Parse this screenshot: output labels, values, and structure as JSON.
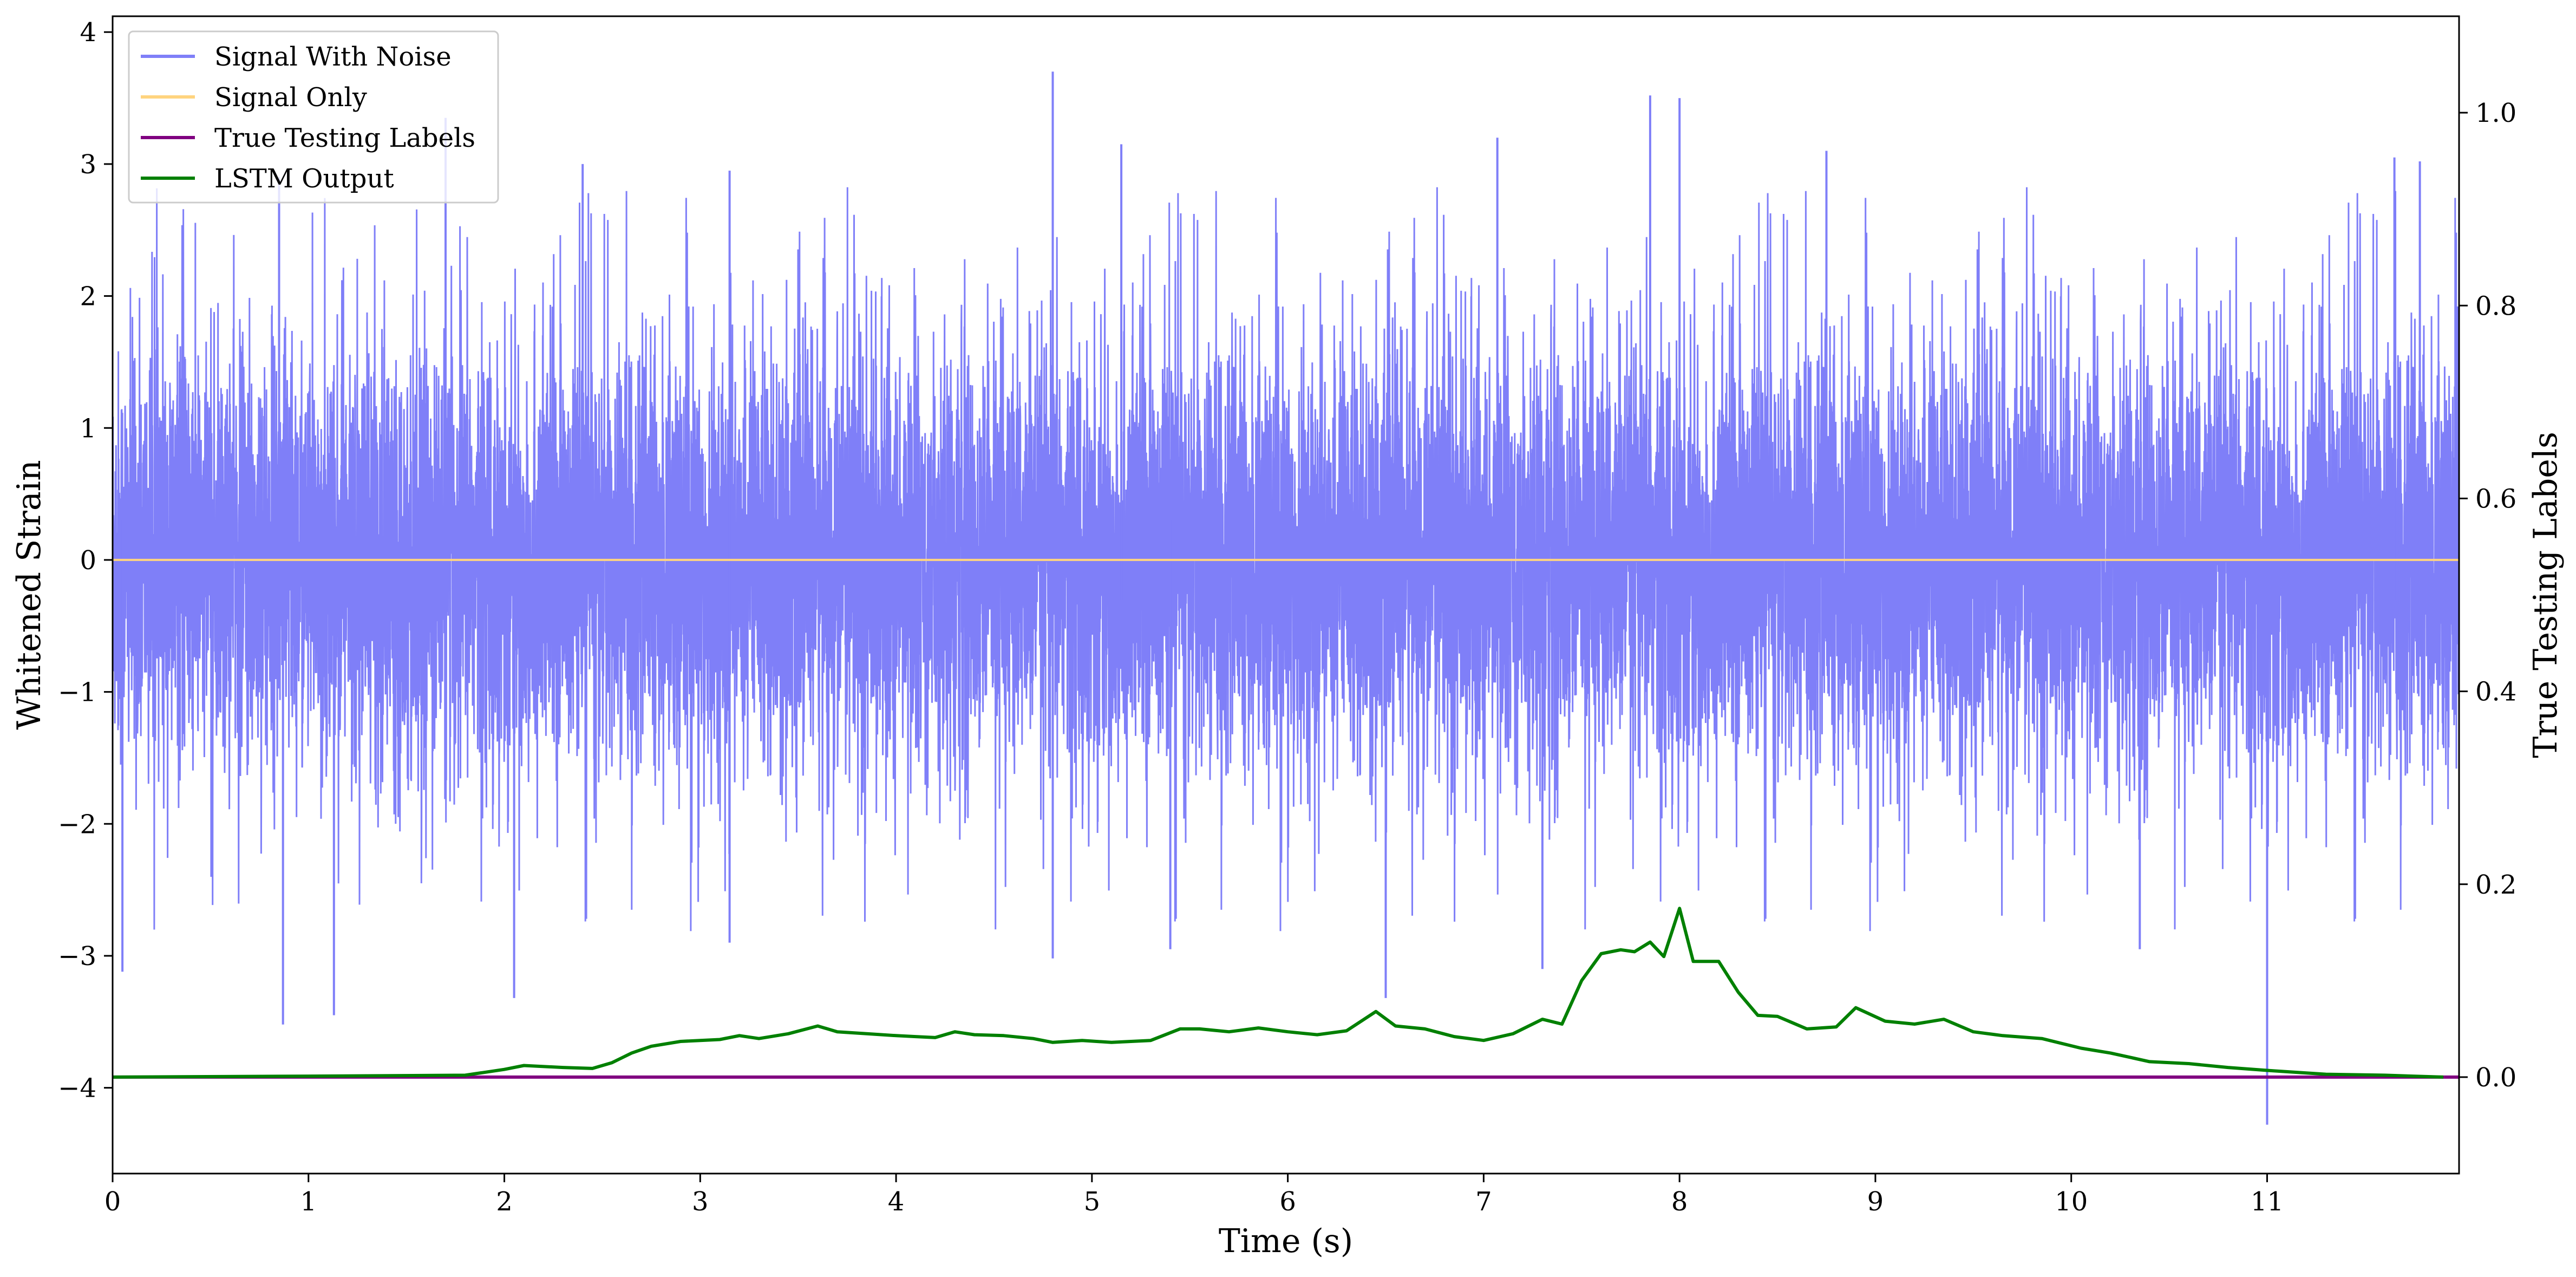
{
  "chart_data": {
    "type": "line",
    "title": "",
    "xlabel": "Time (s)",
    "ylabel": "Whitened Strain",
    "ylabel_right": "True Testing Labels",
    "xlim": [
      0,
      11.98
    ],
    "ylim": [
      -4.65,
      4.12
    ],
    "ylim_right": [
      -0.1,
      1.1
    ],
    "x_ticks": [
      0,
      1,
      2,
      3,
      4,
      5,
      6,
      7,
      8,
      9,
      10,
      11
    ],
    "x_tick_labels": [
      "0",
      "1",
      "2",
      "3",
      "4",
      "5",
      "6",
      "7",
      "8",
      "9",
      "10",
      "11"
    ],
    "y_ticks": [
      -4,
      -3,
      -2,
      -1,
      0,
      1,
      2,
      3,
      4
    ],
    "y_tick_labels": [
      "−4",
      "−3",
      "−2",
      "−1",
      "0",
      "1",
      "2",
      "3",
      "4"
    ],
    "y_right_ticks": [
      0.0,
      0.2,
      0.4,
      0.6,
      0.8,
      1.0
    ],
    "y_right_tick_labels": [
      "0.0",
      "0.2",
      "0.4",
      "0.6",
      "0.8",
      "1.0"
    ],
    "grid": false,
    "legend_position": "top-left",
    "series": [
      {
        "name": "Signal With Noise",
        "color": "#7f7ff8",
        "axis": "left",
        "kind": "noise",
        "x_range": [
          0,
          11.98
        ],
        "core_amplitude": [
          -1.0,
          1.0
        ],
        "peaks": [
          {
            "x": 4.8,
            "y": 3.7
          },
          {
            "x": 7.85,
            "y": 3.52
          },
          {
            "x": 8.0,
            "y": 3.5
          },
          {
            "x": 7.07,
            "y": 3.2
          },
          {
            "x": 11.65,
            "y": 3.05
          },
          {
            "x": 11.78,
            "y": 3.02
          },
          {
            "x": 1.7,
            "y": 3.35
          },
          {
            "x": 2.4,
            "y": 3.0
          },
          {
            "x": 5.15,
            "y": 3.15
          },
          {
            "x": 8.75,
            "y": 3.1
          },
          {
            "x": 3.15,
            "y": 2.95
          },
          {
            "x": 0.85,
            "y": 2.9
          },
          {
            "x": 11.0,
            "y": -4.28
          },
          {
            "x": 0.05,
            "y": -3.12
          },
          {
            "x": 0.87,
            "y": -3.52
          },
          {
            "x": 1.13,
            "y": -3.45
          },
          {
            "x": 2.05,
            "y": -3.32
          },
          {
            "x": 6.5,
            "y": -3.32
          },
          {
            "x": 4.8,
            "y": -3.02
          },
          {
            "x": 3.15,
            "y": -2.9
          },
          {
            "x": 5.4,
            "y": -2.95
          },
          {
            "x": 7.3,
            "y": -3.1
          },
          {
            "x": 10.35,
            "y": -2.95
          }
        ]
      },
      {
        "name": "Signal Only",
        "color": "#ffd47f",
        "axis": "left",
        "x": [
          0,
          11.98
        ],
        "y": [
          0,
          0
        ]
      },
      {
        "name": "True Testing Labels",
        "color": "#800080",
        "axis": "right",
        "x": [
          0,
          11.98
        ],
        "y": [
          0,
          0
        ]
      },
      {
        "name": "LSTM Output",
        "color": "#008000",
        "axis": "right",
        "x": [
          0,
          1.0,
          1.8,
          2.0,
          2.1,
          2.3,
          2.45,
          2.55,
          2.65,
          2.75,
          2.9,
          3.0,
          3.1,
          3.2,
          3.3,
          3.45,
          3.6,
          3.7,
          3.85,
          4.0,
          4.1,
          4.2,
          4.3,
          4.4,
          4.55,
          4.7,
          4.8,
          4.95,
          5.1,
          5.3,
          5.45,
          5.55,
          5.7,
          5.85,
          6.0,
          6.15,
          6.3,
          6.45,
          6.55,
          6.7,
          6.85,
          7.0,
          7.15,
          7.3,
          7.4,
          7.5,
          7.6,
          7.7,
          7.77,
          7.85,
          7.92,
          8.0,
          8.07,
          8.2,
          8.3,
          8.4,
          8.5,
          8.65,
          8.8,
          8.9,
          9.05,
          9.2,
          9.35,
          9.5,
          9.65,
          9.85,
          10.05,
          10.2,
          10.4,
          10.6,
          10.8,
          11.0,
          11.3,
          11.6,
          11.9
        ],
        "y": [
          0.0,
          0.001,
          0.002,
          0.008,
          0.012,
          0.01,
          0.009,
          0.015,
          0.025,
          0.032,
          0.037,
          0.038,
          0.039,
          0.043,
          0.04,
          0.045,
          0.053,
          0.047,
          0.045,
          0.043,
          0.042,
          0.041,
          0.047,
          0.044,
          0.043,
          0.04,
          0.036,
          0.038,
          0.036,
          0.038,
          0.05,
          0.05,
          0.047,
          0.051,
          0.047,
          0.044,
          0.048,
          0.068,
          0.053,
          0.05,
          0.042,
          0.038,
          0.045,
          0.06,
          0.055,
          0.1,
          0.128,
          0.132,
          0.13,
          0.14,
          0.125,
          0.175,
          0.12,
          0.12,
          0.088,
          0.064,
          0.063,
          0.05,
          0.052,
          0.072,
          0.058,
          0.055,
          0.06,
          0.047,
          0.043,
          0.04,
          0.03,
          0.025,
          0.016,
          0.014,
          0.01,
          0.007,
          0.003,
          0.002,
          0.0
        ]
      }
    ]
  }
}
